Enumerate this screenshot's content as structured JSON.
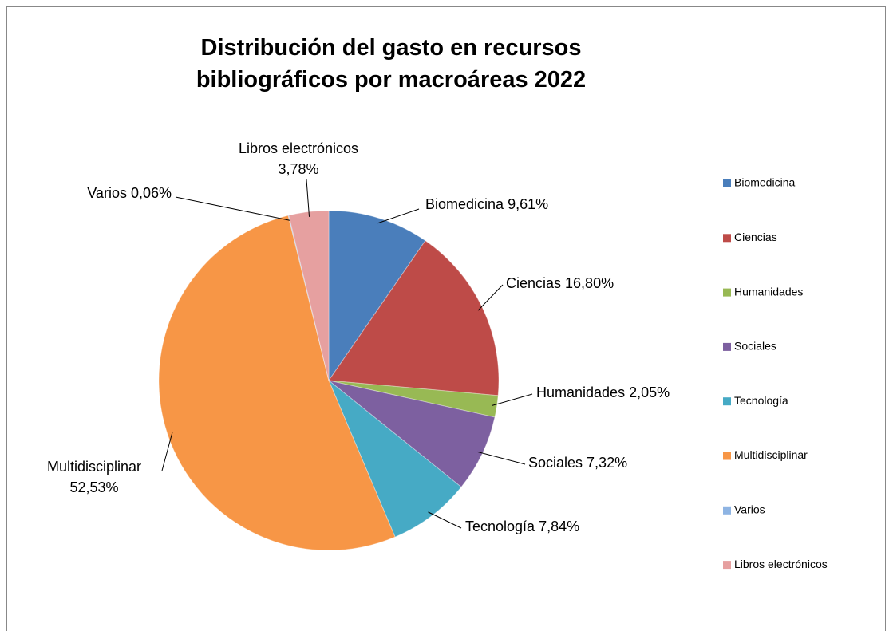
{
  "chart_data": {
    "type": "pie",
    "title": "Distribución del gasto en recursos bibliográficos por macroáreas 2022",
    "categories": [
      "Biomedicina",
      "Ciencias",
      "Humanidades",
      "Sociales",
      "Tecnología",
      "Multidisciplinar",
      "Varios",
      "Libros electrónicos"
    ],
    "values": [
      9.61,
      16.8,
      2.05,
      7.32,
      7.84,
      52.53,
      0.06,
      3.78
    ],
    "value_labels": [
      "9,61%",
      "16,80%",
      "2,05%",
      "7,32%",
      "7,84%",
      "52,53%",
      "0,06%",
      "3,78%"
    ],
    "colors": [
      "#4a7ebb",
      "#be4b48",
      "#98b954",
      "#7d60a0",
      "#46aac5",
      "#f79646",
      "#8eb4e3",
      "#e6a0a0"
    ],
    "legend": "right"
  }
}
